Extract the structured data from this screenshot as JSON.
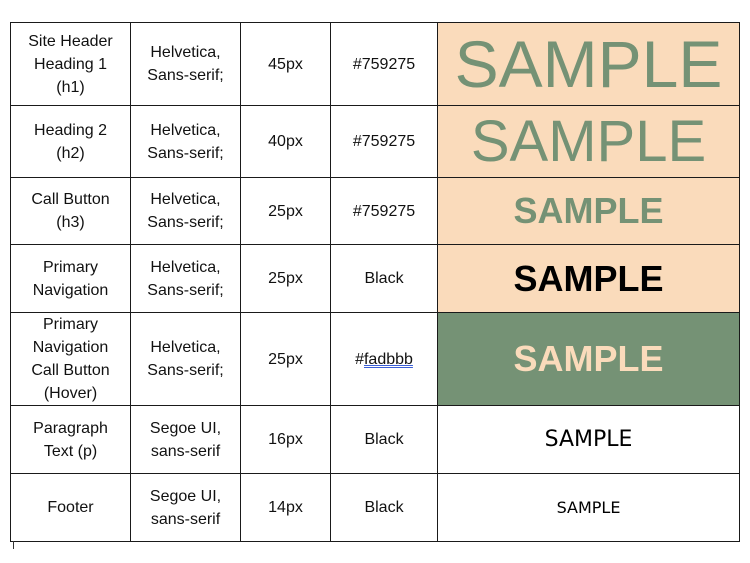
{
  "rows": [
    {
      "element": [
        "Site Header",
        "Heading 1",
        "(h1)"
      ],
      "font": [
        "Helvetica,",
        "Sans-serif;"
      ],
      "size": "45px",
      "color_prefix": "#759275",
      "color_suffix": "",
      "sample": "SAMPLE",
      "background": "#fadbbb"
    },
    {
      "element": [
        "Heading 2",
        "(h2)"
      ],
      "font": [
        "Helvetica,",
        "Sans-serif;"
      ],
      "size": "40px",
      "color_prefix": "#759275",
      "color_suffix": "",
      "sample": "SAMPLE",
      "background": "#fadbbb"
    },
    {
      "element": [
        "Call Button",
        "(h3)"
      ],
      "font": [
        "Helvetica,",
        "Sans-serif;"
      ],
      "size": "25px",
      "color_prefix": "#759275",
      "color_suffix": "",
      "sample": "SAMPLE",
      "background": "#fadbbb"
    },
    {
      "element": [
        "Primary",
        "Navigation"
      ],
      "font": [
        "Helvetica,",
        "Sans-serif;"
      ],
      "size": "25px",
      "color_prefix": "Black",
      "color_suffix": "",
      "sample": "SAMPLE",
      "background": "#fadbbb"
    },
    {
      "element": [
        "Primary",
        "Navigation",
        "Call Button",
        "(Hover)"
      ],
      "font": [
        "Helvetica,",
        "Sans-serif;"
      ],
      "size": "25px",
      "color_prefix": "#",
      "color_suffix": "fadbbb",
      "sample": "SAMPLE",
      "background": "#759275"
    },
    {
      "element": [
        "Paragraph",
        "Text (p)"
      ],
      "font": [
        "Segoe UI,",
        "sans-serif"
      ],
      "size": "16px",
      "color_prefix": "Black",
      "color_suffix": "",
      "sample": "SAMPLE",
      "background": "#ffffff"
    },
    {
      "element": [
        "Footer"
      ],
      "font": [
        "Segoe UI,",
        "sans-serif"
      ],
      "size": "14px",
      "color_prefix": "Black",
      "color_suffix": "",
      "sample": "SAMPLE",
      "background": "#ffffff"
    }
  ]
}
